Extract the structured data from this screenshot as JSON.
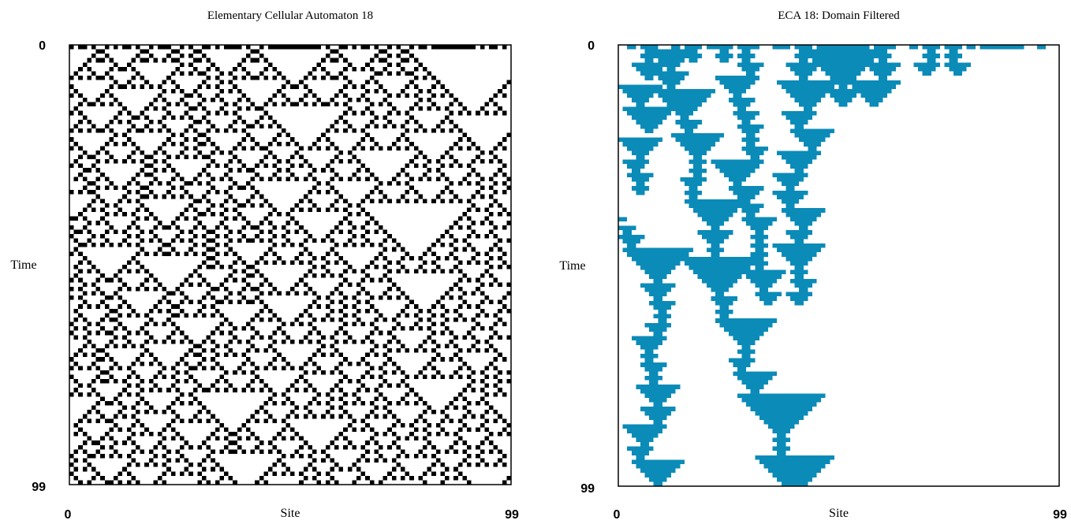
{
  "chart_data": [
    {
      "type": "spacetime",
      "title": "Elementary Cellular Automaton 18",
      "rule": 18,
      "initial_row": "1011010010101101001011100101001101011110100101111111111110100110101101001010010110111111111101011010010",
      "xlabel": "Site",
      "ylabel": "Time",
      "xlim": [
        0,
        99
      ],
      "ylim": [
        0,
        99
      ],
      "xticks": [
        0,
        99
      ],
      "yticks": [
        0,
        99
      ],
      "color": "#000000"
    },
    {
      "type": "filtered",
      "title": "ECA 18: Domain Filtered",
      "rule": 18,
      "initial_row": "1011010010101101001011100101001101011110100101111111111110100110101101001010010110111111111101011010010",
      "xlabel": "Site",
      "ylabel": "Time",
      "xlim": [
        0,
        99
      ],
      "ylim": [
        0,
        99
      ],
      "xticks": [
        0,
        99
      ],
      "yticks": [
        0,
        99
      ],
      "color": "#0b8bb8"
    }
  ]
}
